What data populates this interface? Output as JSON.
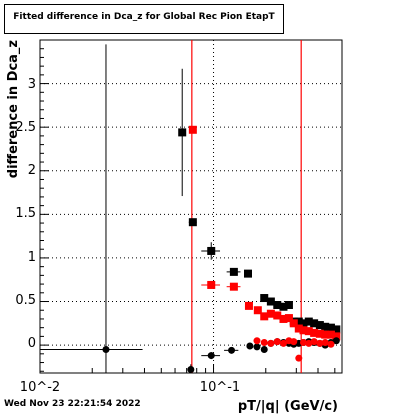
{
  "chart_data": {
    "type": "scatter",
    "title": "Fitted difference in Dca_z for Global Rec Pion EtapT",
    "xlabel": "pT/|q| (GeV/c)",
    "ylabel": "difference in Dca_z",
    "xscale": "log",
    "xlim": [
      0.01,
      0.55
    ],
    "ylim": [
      -0.32,
      3.5
    ],
    "x_tick_labels": [
      "10^-2",
      "10^-1"
    ],
    "y_ticks": [
      0,
      0.5,
      1,
      1.5,
      2,
      2.5,
      3
    ],
    "y_tick_labels": [
      "0",
      "0.5",
      "1",
      "1.5",
      "2",
      "2.5",
      "3"
    ],
    "grid": true,
    "vertical_lines": [
      {
        "x": 0.075,
        "color": "#ff0000"
      },
      {
        "x": 0.32,
        "color": "#ff0000"
      }
    ],
    "series": [
      {
        "marker": "square",
        "color": "#000000",
        "points": [
          {
            "x": 0.066,
            "y": 2.44,
            "yerr": 0.73
          },
          {
            "x": 0.076,
            "y": 1.41,
            "yerr": 0.03,
            "xerr": 0.004
          },
          {
            "x": 0.097,
            "y": 1.08,
            "yerr": 0.1,
            "xerr": 0.012
          },
          {
            "x": 0.131,
            "y": 0.84,
            "yerr": 0.04,
            "xerr": 0.012
          },
          {
            "x": 0.158,
            "y": 0.82,
            "yerr": 0.03,
            "xerr": 0.008
          },
          {
            "x": 0.196,
            "y": 0.54,
            "yerr": 0.03
          },
          {
            "x": 0.214,
            "y": 0.5,
            "yerr": 0.03
          },
          {
            "x": 0.233,
            "y": 0.46,
            "yerr": 0.03
          },
          {
            "x": 0.253,
            "y": 0.44
          },
          {
            "x": 0.272,
            "y": 0.46
          },
          {
            "x": 0.29,
            "y": 0.27
          },
          {
            "x": 0.31,
            "y": 0.27
          },
          {
            "x": 0.33,
            "y": 0.25
          },
          {
            "x": 0.354,
            "y": 0.27
          },
          {
            "x": 0.38,
            "y": 0.25
          },
          {
            "x": 0.41,
            "y": 0.23
          },
          {
            "x": 0.44,
            "y": 0.21
          },
          {
            "x": 0.475,
            "y": 0.2
          },
          {
            "x": 0.51,
            "y": 0.18
          }
        ]
      },
      {
        "marker": "square",
        "color": "#ff0000",
        "points": [
          {
            "x": 0.076,
            "y": 2.47
          },
          {
            "x": 0.097,
            "y": 0.69,
            "xerr": 0.012
          },
          {
            "x": 0.131,
            "y": 0.67,
            "xerr": 0.012
          },
          {
            "x": 0.16,
            "y": 0.45
          },
          {
            "x": 0.18,
            "y": 0.4
          },
          {
            "x": 0.196,
            "y": 0.33
          },
          {
            "x": 0.214,
            "y": 0.36
          },
          {
            "x": 0.233,
            "y": 0.34
          },
          {
            "x": 0.253,
            "y": 0.3
          },
          {
            "x": 0.272,
            "y": 0.31
          },
          {
            "x": 0.29,
            "y": 0.25
          },
          {
            "x": 0.31,
            "y": 0.19
          },
          {
            "x": 0.33,
            "y": 0.17
          },
          {
            "x": 0.354,
            "y": 0.16
          },
          {
            "x": 0.38,
            "y": 0.14
          },
          {
            "x": 0.41,
            "y": 0.13
          },
          {
            "x": 0.44,
            "y": 0.12
          },
          {
            "x": 0.475,
            "y": 0.12
          },
          {
            "x": 0.51,
            "y": 0.1
          }
        ]
      },
      {
        "marker": "circle",
        "color": "#000000",
        "points": [
          {
            "x": 0.024,
            "y": -0.05,
            "xerr": 0.015,
            "yerr": 3.5
          },
          {
            "x": 0.074,
            "y": -0.28,
            "yerr": 0.06
          },
          {
            "x": 0.097,
            "y": -0.12,
            "xerr": 0.012,
            "yerr": 0.04
          },
          {
            "x": 0.127,
            "y": -0.06,
            "xerr": 0.012
          },
          {
            "x": 0.162,
            "y": -0.01
          },
          {
            "x": 0.178,
            "y": -0.02
          },
          {
            "x": 0.196,
            "y": -0.05
          },
          {
            "x": 0.214,
            "y": 0.02
          },
          {
            "x": 0.233,
            "y": 0.04
          },
          {
            "x": 0.253,
            "y": 0.03
          },
          {
            "x": 0.272,
            "y": 0.02
          },
          {
            "x": 0.29,
            "y": 0.01
          },
          {
            "x": 0.31,
            "y": 0.02
          },
          {
            "x": 0.33,
            "y": 0.03
          },
          {
            "x": 0.354,
            "y": 0.04
          },
          {
            "x": 0.38,
            "y": 0.03
          },
          {
            "x": 0.41,
            "y": 0.02
          },
          {
            "x": 0.44,
            "y": 0.0
          },
          {
            "x": 0.475,
            "y": 0.03
          },
          {
            "x": 0.51,
            "y": 0.05
          }
        ]
      },
      {
        "marker": "circle",
        "color": "#ff0000",
        "points": [
          {
            "x": 0.178,
            "y": 0.05
          },
          {
            "x": 0.196,
            "y": 0.03
          },
          {
            "x": 0.214,
            "y": 0.02
          },
          {
            "x": 0.233,
            "y": 0.04
          },
          {
            "x": 0.253,
            "y": 0.02
          },
          {
            "x": 0.272,
            "y": 0.05
          },
          {
            "x": 0.29,
            "y": 0.04
          },
          {
            "x": 0.31,
            "y": -0.15
          },
          {
            "x": 0.33,
            "y": 0.03
          },
          {
            "x": 0.354,
            "y": 0.02
          },
          {
            "x": 0.38,
            "y": 0.04
          },
          {
            "x": 0.41,
            "y": 0.02
          },
          {
            "x": 0.44,
            "y": 0.03
          },
          {
            "x": 0.475,
            "y": 0.01
          }
        ]
      }
    ]
  },
  "footer": {
    "timestamp": "Wed Nov 23 22:21:54 2022"
  }
}
